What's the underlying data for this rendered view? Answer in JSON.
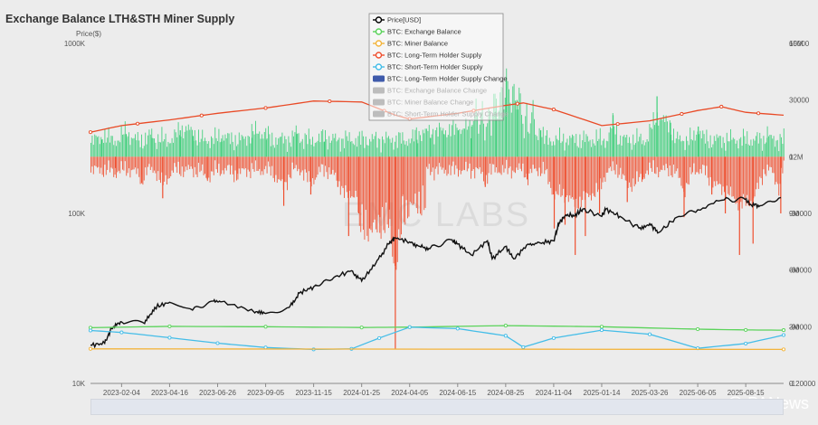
{
  "title": "Exchange Balance LTH&STH Miner Supply",
  "watermark": "EMC LABS",
  "source_mark": "@ PANews",
  "chart_data": {
    "type": "line",
    "title": "Exchange Balance LTH&STH Miner Supply",
    "ylabel": "Price($)",
    "x_tick_labels": [
      "2023-02-04",
      "2023-04-16",
      "2023-06-26",
      "2023-09-05",
      "2023-11-15",
      "2024-01-25",
      "2024-04-05",
      "2024-06-15",
      "2024-08-25",
      "2024-11-04",
      "2025-01-14",
      "2025-03-26",
      "2025-06-05",
      "2025-08-15"
    ],
    "left_axis": {
      "scale": "log",
      "range": [
        10000,
        1000000
      ],
      "ticks": [
        "10K",
        "100K",
        "1000K"
      ]
    },
    "right_axis_supply": {
      "range": [
        0,
        18000000
      ],
      "ticks": [
        "0",
        "3M",
        "6M",
        "9M",
        "12M",
        "15M"
      ],
      "top_label": "15M"
    },
    "right_axis_change": {
      "range": [
        -120000,
        60000
      ],
      "ticks": [
        "-120000",
        "-90000",
        "-60000",
        "-30000",
        "0",
        "30000",
        "60000"
      ]
    },
    "grid": false,
    "legend_position": "top-center",
    "legend": [
      {
        "label": "Price[USD]",
        "color": "#000000",
        "marker": "circle",
        "active": true
      },
      {
        "label": "BTC: Exchange Balance",
        "color": "#5ad35a",
        "marker": "circle",
        "active": true
      },
      {
        "label": "BTC: Miner Balance",
        "color": "#f3b43b",
        "marker": "circle",
        "active": true
      },
      {
        "label": "BTC: Long-Term Holder Supply",
        "color": "#ef5030",
        "marker": "circle",
        "active": true
      },
      {
        "label": "BTC: Short-Term Holder Supply",
        "color": "#44bde8",
        "marker": "circle",
        "active": true
      },
      {
        "label": "BTC: Long-Term Holder Supply Change",
        "color": "#3f5bab",
        "marker": "box",
        "active": true
      },
      {
        "label": "BTC: Exchange Balance Change",
        "color": "#bdbdbd",
        "marker": "box",
        "active": false
      },
      {
        "label": "BTC: Miner Balance Change",
        "color": "#bdbdbd",
        "marker": "box",
        "active": false
      },
      {
        "label": "BTC: Short-Term Holder Supply Change",
        "color": "#bdbdbd",
        "marker": "box",
        "active": false
      }
    ],
    "x_start": "2022-12-20",
    "x_end": "2025-10-10",
    "series": [
      {
        "name": "Price[USD]",
        "axis": "left",
        "color": "#111111",
        "x": [
          "2022-12-20",
          "2023-01-10",
          "2023-01-20",
          "2023-02-04",
          "2023-03-10",
          "2023-03-25",
          "2023-04-16",
          "2023-05-20",
          "2023-06-20",
          "2023-07-01",
          "2023-08-20",
          "2023-09-05",
          "2023-10-10",
          "2023-10-25",
          "2023-11-15",
          "2023-12-15",
          "2024-01-10",
          "2024-01-25",
          "2024-02-15",
          "2024-03-05",
          "2024-03-14",
          "2024-04-05",
          "2024-04-20",
          "2024-05-05",
          "2024-06-05",
          "2024-06-15",
          "2024-07-05",
          "2024-07-29",
          "2024-08-05",
          "2024-08-25",
          "2024-09-06",
          "2024-09-27",
          "2024-10-15",
          "2024-11-04",
          "2024-11-12",
          "2024-11-22",
          "2024-12-05",
          "2024-12-17",
          "2025-01-14",
          "2025-01-20",
          "2025-02-10",
          "2025-03-10",
          "2025-03-26",
          "2025-04-08",
          "2025-05-05",
          "2025-06-05",
          "2025-07-14",
          "2025-08-14",
          "2025-08-22",
          "2025-09-05",
          "2025-10-06"
        ],
        "y": [
          16800,
          17200,
          21000,
          23000,
          22500,
          28000,
          30000,
          27000,
          30500,
          30200,
          26000,
          25800,
          28000,
          34000,
          37000,
          42000,
          46000,
          40000,
          51000,
          66000,
          72000,
          68000,
          64000,
          62000,
          70000,
          66000,
          57000,
          69000,
          54000,
          64000,
          54000,
          66000,
          67000,
          69000,
          88000,
          98000,
          97000,
          106000,
          96000,
          106000,
          96000,
          82000,
          87000,
          77000,
          95000,
          105000,
          120000,
          121000,
          113000,
          111000,
          124000
        ]
      },
      {
        "name": "BTC: Long-Term Holder Supply",
        "axis": "right_supply",
        "color": "#e94a26",
        "x": [
          "2022-12-20",
          "2023-02-04",
          "2023-04-16",
          "2023-06-26",
          "2023-09-05",
          "2023-11-15",
          "2024-01-25",
          "2024-03-15",
          "2024-04-05",
          "2024-06-15",
          "2024-08-25",
          "2024-09-20",
          "2024-11-04",
          "2025-01-14",
          "2025-03-26",
          "2025-06-05",
          "2025-07-10",
          "2025-08-15",
          "2025-10-10"
        ],
        "y": [
          13300000,
          13650000,
          13950000,
          14300000,
          14580000,
          14950000,
          14900000,
          14200000,
          14000000,
          14300000,
          14720000,
          14850000,
          14500000,
          13650000,
          13900000,
          14450000,
          14650000,
          14350000,
          14200000
        ]
      },
      {
        "name": "BTC: Exchange Balance",
        "axis": "right_supply",
        "color": "#5ad35a",
        "x": [
          "2022-12-20",
          "2023-04-16",
          "2023-09-05",
          "2024-01-25",
          "2024-04-05",
          "2024-08-25",
          "2025-01-14",
          "2025-06-05",
          "2025-08-15",
          "2025-10-10"
        ],
        "y": [
          2950000,
          3020000,
          3000000,
          2960000,
          2980000,
          3060000,
          3000000,
          2870000,
          2830000,
          2820000
        ]
      },
      {
        "name": "BTC: Short-Term Holder Supply",
        "axis": "right_supply",
        "color": "#44bde8",
        "x": [
          "2022-12-20",
          "2023-02-04",
          "2023-04-16",
          "2023-06-26",
          "2023-09-05",
          "2023-11-15",
          "2024-01-10",
          "2024-02-20",
          "2024-04-05",
          "2024-06-15",
          "2024-08-25",
          "2024-09-20",
          "2024-11-04",
          "2025-01-14",
          "2025-03-26",
          "2025-06-05",
          "2025-08-15",
          "2025-10-10"
        ],
        "y": [
          2800000,
          2700000,
          2420000,
          2130000,
          1900000,
          1800000,
          1830000,
          2400000,
          2980000,
          2900000,
          2520000,
          1920000,
          2400000,
          2820000,
          2600000,
          1860000,
          2110000,
          2560000
        ]
      },
      {
        "name": "BTC: Miner Balance",
        "axis": "right_supply",
        "color": "#f3b43b",
        "x": [
          "2022-12-20",
          "2025-10-10"
        ],
        "y": [
          1830000,
          1800000
        ]
      }
    ],
    "bar_series": {
      "name": "BTC: Long-Term Holder Supply Change",
      "axis": "right_change",
      "positive_color": "#3ecf7a",
      "negative_color": "#ef5030",
      "x": [
        "2023-01-05",
        "2023-01-25",
        "2023-02-10",
        "2023-03-05",
        "2023-03-20",
        "2023-04-05",
        "2023-05-01",
        "2023-05-20",
        "2023-06-10",
        "2023-07-01",
        "2023-07-25",
        "2023-08-15",
        "2023-09-05",
        "2023-10-01",
        "2023-10-20",
        "2023-11-10",
        "2023-11-30",
        "2023-12-20",
        "2024-01-05",
        "2024-01-20",
        "2024-02-05",
        "2024-02-20",
        "2024-03-05",
        "2024-03-14",
        "2024-03-25",
        "2024-04-15",
        "2024-05-05",
        "2024-05-25",
        "2024-06-15",
        "2024-07-05",
        "2024-07-25",
        "2024-08-10",
        "2024-08-25",
        "2024-09-10",
        "2024-09-25",
        "2024-10-15",
        "2024-11-04",
        "2024-11-20",
        "2024-12-05",
        "2024-12-20",
        "2025-01-10",
        "2025-01-30",
        "2025-02-20",
        "2025-03-15",
        "2025-04-05",
        "2025-04-25",
        "2025-05-15",
        "2025-06-05",
        "2025-06-25",
        "2025-07-15",
        "2025-08-05",
        "2025-08-25",
        "2025-09-15",
        "2025-10-05"
      ],
      "y": [
        9000,
        -6000,
        12000,
        -14000,
        10000,
        -22000,
        14000,
        11000,
        -12000,
        8000,
        -9000,
        10000,
        9000,
        -26000,
        12000,
        -20000,
        8000,
        -16000,
        -42000,
        -30000,
        -38000,
        -32000,
        -28000,
        -102000,
        -20000,
        9000,
        10000,
        12000,
        14000,
        16000,
        -16000,
        24000,
        42000,
        30000,
        -12000,
        14000,
        -38000,
        -36000,
        -52000,
        -42000,
        -30000,
        22000,
        -24000,
        -12000,
        32000,
        18000,
        -32000,
        16000,
        -20000,
        -30000,
        -52000,
        -46000,
        10000,
        -30000
      ]
    }
  }
}
